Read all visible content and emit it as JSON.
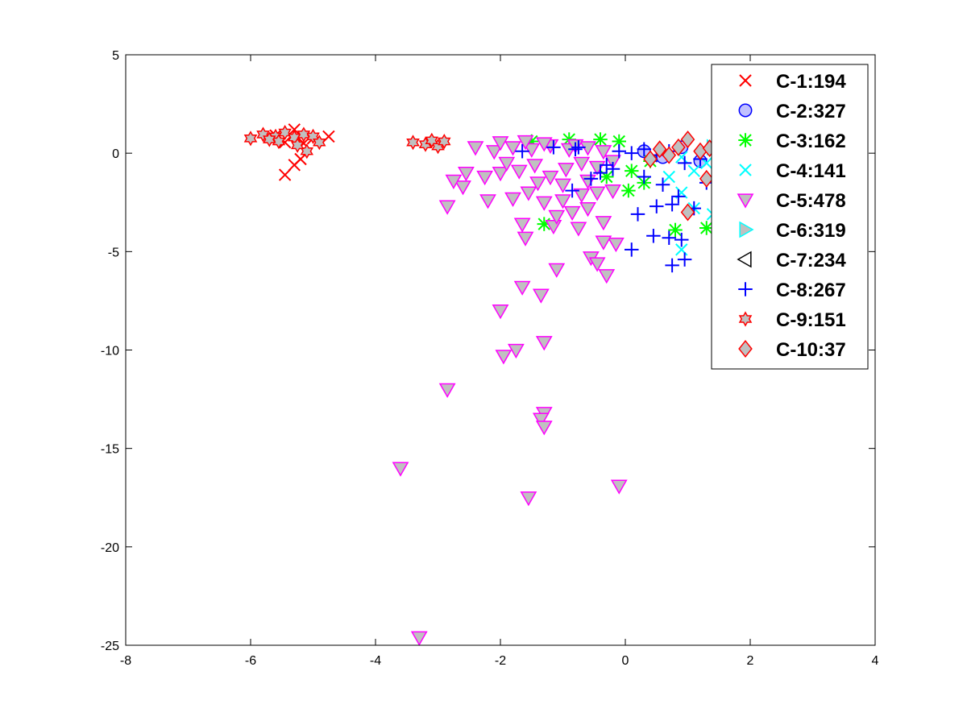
{
  "chart_data": {
    "type": "scatter",
    "title": "",
    "xlabel": "",
    "ylabel": "",
    "xlim": [
      -8,
      4
    ],
    "ylim": [
      -25,
      5
    ],
    "xticks": [
      -8,
      -6,
      -4,
      -2,
      0,
      2,
      4
    ],
    "yticks": [
      5,
      0,
      -5,
      -10,
      -15,
      -20,
      -25
    ],
    "grid": false,
    "legend_position": "top-right",
    "series": [
      {
        "name": "C-1:194",
        "marker": "x",
        "color": "#ff0000",
        "points": [
          [
            -5.45,
            -1.1
          ],
          [
            -5.3,
            -0.6
          ],
          [
            -5.2,
            -0.3
          ],
          [
            -4.75,
            0.85
          ],
          [
            -5.6,
            0.9
          ],
          [
            -5.3,
            1.2
          ],
          [
            -5.0,
            0.75
          ],
          [
            -5.45,
            0.55
          ],
          [
            -5.15,
            0.5
          ]
        ]
      },
      {
        "name": "C-2:327",
        "marker": "circle",
        "color": "#0000ff",
        "fill": "#c0c0ff",
        "points": [
          [
            0.3,
            0.1
          ],
          [
            0.6,
            -0.2
          ],
          [
            0.9,
            0.3
          ],
          [
            1.2,
            -0.4
          ]
        ]
      },
      {
        "name": "C-3:162",
        "marker": "star",
        "color": "#00ff00",
        "points": [
          [
            -1.5,
            0.6
          ],
          [
            -0.9,
            0.7
          ],
          [
            -0.4,
            0.7
          ],
          [
            -0.1,
            0.6
          ],
          [
            0.1,
            -0.9
          ],
          [
            0.05,
            -1.9
          ],
          [
            -0.3,
            -1.2
          ],
          [
            0.4,
            -0.4
          ],
          [
            0.8,
            -3.9
          ],
          [
            1.3,
            -3.8
          ],
          [
            -1.3,
            -3.6
          ],
          [
            0.3,
            -1.5
          ]
        ]
      },
      {
        "name": "C-4:141",
        "marker": "x",
        "color": "#00ffff",
        "points": [
          [
            0.7,
            -1.2
          ],
          [
            0.9,
            -2.0
          ],
          [
            0.9,
            -4.9
          ],
          [
            1.1,
            -2.8
          ],
          [
            1.4,
            -3.1
          ],
          [
            1.3,
            -0.5
          ],
          [
            0.9,
            -0.2
          ],
          [
            1.1,
            -0.9
          ]
        ]
      },
      {
        "name": "C-5:478",
        "marker": "triangle-down",
        "color": "#ff00ff",
        "fill": "#c0c0c0",
        "points": [
          [
            -3.3,
            -24.6
          ],
          [
            -3.6,
            -16.0
          ],
          [
            -1.55,
            -17.5
          ],
          [
            -0.1,
            -16.9
          ],
          [
            -1.3,
            -13.2
          ],
          [
            -1.35,
            -13.5
          ],
          [
            -1.3,
            -13.9
          ],
          [
            -2.85,
            -12.0
          ],
          [
            -1.95,
            -10.3
          ],
          [
            -1.75,
            -10.0
          ],
          [
            -1.3,
            -9.6
          ],
          [
            -2.0,
            -8.0
          ],
          [
            -1.65,
            -6.8
          ],
          [
            -1.35,
            -7.2
          ],
          [
            -1.1,
            -5.9
          ],
          [
            -0.3,
            -6.2
          ],
          [
            -0.55,
            -5.3
          ],
          [
            -0.45,
            -5.6
          ],
          [
            -0.15,
            -4.6
          ],
          [
            -0.35,
            -4.5
          ],
          [
            -1.6,
            -4.3
          ],
          [
            -1.65,
            -3.6
          ],
          [
            -1.15,
            -3.7
          ],
          [
            -0.75,
            -3.8
          ],
          [
            -0.35,
            -3.5
          ],
          [
            -2.85,
            -2.7
          ],
          [
            -2.6,
            -1.7
          ],
          [
            -2.2,
            -2.4
          ],
          [
            -2.75,
            -1.4
          ],
          [
            -2.55,
            -1.0
          ],
          [
            -2.25,
            -1.2
          ],
          [
            -2.0,
            -1.0
          ],
          [
            -1.8,
            -2.3
          ],
          [
            -1.55,
            -2.0
          ],
          [
            -1.3,
            -2.5
          ],
          [
            -1.0,
            -2.4
          ],
          [
            -0.7,
            -2.1
          ],
          [
            -0.45,
            -2.0
          ],
          [
            -0.2,
            -1.9
          ],
          [
            -1.9,
            -0.5
          ],
          [
            -1.7,
            -0.9
          ],
          [
            -1.45,
            -0.6
          ],
          [
            -1.2,
            -1.2
          ],
          [
            -0.95,
            -0.8
          ],
          [
            -0.7,
            -0.5
          ],
          [
            -0.45,
            -0.7
          ],
          [
            -0.2,
            -0.4
          ],
          [
            -2.4,
            0.3
          ],
          [
            -2.1,
            0.1
          ],
          [
            -1.8,
            0.3
          ],
          [
            -1.5,
            0.2
          ],
          [
            -1.2,
            0.4
          ],
          [
            -0.9,
            0.2
          ],
          [
            -0.6,
            0.3
          ],
          [
            -0.35,
            0.1
          ],
          [
            -2.0,
            0.55
          ],
          [
            -1.6,
            0.6
          ],
          [
            -1.3,
            0.5
          ],
          [
            -0.8,
            0.4
          ],
          [
            -1.0,
            -1.6
          ],
          [
            -1.4,
            -1.5
          ],
          [
            -0.6,
            -1.4
          ],
          [
            -0.85,
            -3.0
          ],
          [
            -1.1,
            -3.2
          ],
          [
            -0.6,
            -2.8
          ]
        ]
      },
      {
        "name": "C-6:319",
        "marker": "triangle-right",
        "color": "#00ffff",
        "fill": "#c0c0c0",
        "points": [
          [
            1.4,
            0.3
          ],
          [
            1.6,
            -0.2
          ]
        ]
      },
      {
        "name": "C-7:234",
        "marker": "triangle-left",
        "color": "#000000",
        "points": [
          [
            1.5,
            0.2
          ]
        ]
      },
      {
        "name": "C-8:267",
        "marker": "plus",
        "color": "#0000ff",
        "points": [
          [
            -1.65,
            0.1
          ],
          [
            -1.15,
            0.3
          ],
          [
            -0.8,
            0.2
          ],
          [
            -0.75,
            0.3
          ],
          [
            -0.85,
            -1.9
          ],
          [
            -0.55,
            -1.3
          ],
          [
            -0.3,
            -0.6
          ],
          [
            -0.1,
            0.1
          ],
          [
            0.1,
            0.0
          ],
          [
            0.3,
            0.2
          ],
          [
            0.5,
            -0.1
          ],
          [
            0.7,
            0.1
          ],
          [
            0.95,
            -0.5
          ],
          [
            1.2,
            -0.3
          ],
          [
            0.1,
            -4.9
          ],
          [
            0.45,
            -4.2
          ],
          [
            0.7,
            -4.3
          ],
          [
            0.75,
            -5.7
          ],
          [
            0.95,
            -5.4
          ],
          [
            0.9,
            -4.4
          ],
          [
            0.5,
            -2.7
          ],
          [
            0.75,
            -2.6
          ],
          [
            0.2,
            -3.1
          ],
          [
            1.1,
            -2.8
          ],
          [
            0.6,
            -1.6
          ],
          [
            0.3,
            -1.2
          ],
          [
            -0.2,
            -0.8
          ],
          [
            -0.4,
            -1.0
          ],
          [
            1.3,
            -1.5
          ],
          [
            0.85,
            -2.2
          ]
        ]
      },
      {
        "name": "C-9:151",
        "marker": "hexagram",
        "color": "#ff0000",
        "fill": "#c0c0c0",
        "points": [
          [
            -6.0,
            0.75
          ],
          [
            -5.8,
            0.95
          ],
          [
            -5.6,
            0.85
          ],
          [
            -5.45,
            1.05
          ],
          [
            -5.3,
            0.8
          ],
          [
            -5.15,
            0.95
          ],
          [
            -5.0,
            0.85
          ],
          [
            -4.9,
            0.55
          ],
          [
            -5.1,
            0.1
          ],
          [
            -5.25,
            0.4
          ],
          [
            -5.55,
            0.6
          ],
          [
            -5.7,
            0.7
          ],
          [
            -3.4,
            0.55
          ],
          [
            -3.2,
            0.45
          ],
          [
            -3.0,
            0.35
          ],
          [
            -2.9,
            0.6
          ],
          [
            -3.1,
            0.65
          ]
        ]
      },
      {
        "name": "C-10:37",
        "marker": "diamond",
        "color": "#ff0000",
        "fill": "#c0c0c0",
        "points": [
          [
            0.4,
            -0.3
          ],
          [
            0.55,
            0.2
          ],
          [
            0.7,
            -0.1
          ],
          [
            0.85,
            0.3
          ],
          [
            1.0,
            0.7
          ],
          [
            1.2,
            0.1
          ],
          [
            1.3,
            -1.3
          ],
          [
            1.35,
            0.25
          ],
          [
            1.55,
            -0.7
          ],
          [
            1.0,
            -3.0
          ]
        ]
      }
    ]
  }
}
